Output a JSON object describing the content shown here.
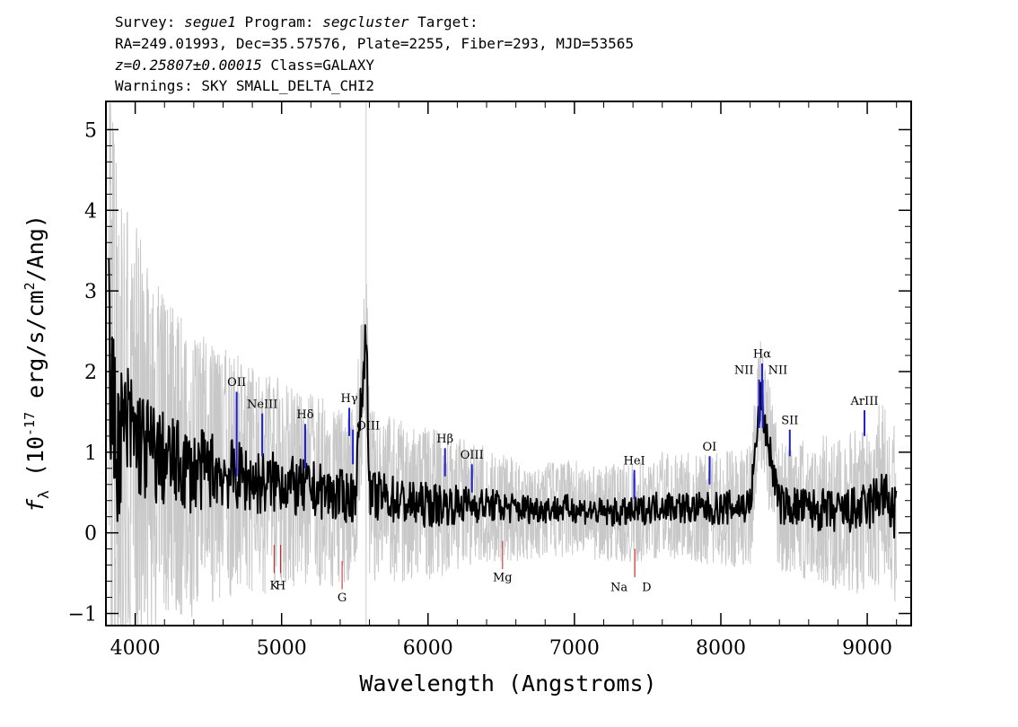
{
  "header": {
    "line1_parts": [
      "Survey: ",
      "segue1",
      " Program: ",
      "segcluster",
      " Target:"
    ],
    "line2": "RA=249.01993, Dec=35.57576, Plate=2255, Fiber=293, MJD=53565",
    "line3_redshift": "z=0.25807±0.00015",
    "line3_class": " Class=GALAXY",
    "line4": "Warnings: SKY SMALL_DELTA_CHI2"
  },
  "chart_data": {
    "type": "line",
    "xlabel": "Wavelength (Angstroms)",
    "ylabel": "fλ (10⁻¹⁷ erg/s/cm²/Ang)",
    "xlim": [
      3800,
      9300
    ],
    "ylim": [
      -1.15,
      5.35
    ],
    "x_ticks": [
      4000,
      5000,
      6000,
      7000,
      8000,
      9000
    ],
    "y_ticks": [
      -1,
      0,
      1,
      2,
      3,
      4,
      5
    ],
    "series": [
      {
        "role": "flux",
        "color": "#000000",
        "x": [
          3820,
          3840,
          3860,
          3880,
          3900,
          3950,
          4000,
          4100,
          4200,
          4300,
          4400,
          4500,
          4600,
          4700,
          4800,
          4900,
          5000,
          5100,
          5200,
          5300,
          5400,
          5500,
          5580,
          5600,
          5700,
          5800,
          5900,
          6000,
          6200,
          6400,
          6600,
          6800,
          7000,
          7200,
          7400,
          7600,
          7800,
          8000,
          8200,
          8270,
          8400,
          8600,
          8800,
          9000,
          9100,
          9200
        ],
        "y": [
          2.4,
          1.5,
          1.3,
          1.1,
          1.2,
          1.3,
          1.2,
          1.0,
          0.9,
          0.85,
          0.75,
          0.8,
          0.75,
          0.7,
          0.65,
          0.6,
          0.65,
          0.55,
          0.55,
          0.5,
          0.45,
          0.45,
          2.55,
          0.45,
          0.45,
          0.4,
          0.35,
          0.35,
          0.35,
          0.35,
          0.3,
          0.3,
          0.3,
          0.25,
          0.25,
          0.35,
          0.3,
          0.3,
          0.35,
          1.65,
          0.35,
          0.3,
          0.25,
          0.3,
          0.5,
          0.2
        ]
      },
      {
        "role": "error",
        "color": "#c8c8c8",
        "x": [
          3820,
          3900,
          4000,
          4200,
          4400,
          4600,
          4800,
          5000,
          5200,
          5400,
          5600,
          5800,
          6000,
          6400,
          6800,
          7200,
          7600,
          8000,
          8400,
          8800,
          9000,
          9200
        ],
        "y": [
          3.5,
          2.6,
          2.2,
          1.7,
          1.5,
          1.3,
          1.2,
          1.1,
          1.0,
          0.95,
          0.9,
          0.85,
          0.8,
          0.6,
          0.5,
          0.5,
          0.55,
          0.6,
          0.7,
          0.8,
          0.9,
          1.0
        ]
      }
    ],
    "sky_line_x": 5577,
    "emission_lines": [
      {
        "label": "OII",
        "x": 4693,
        "y0": 0.7,
        "y1": 1.75,
        "label_y": 1.82,
        "color": "#1f1fd1"
      },
      {
        "label": "NeIII",
        "x": 4868,
        "y0": 0.95,
        "y1": 1.48,
        "label_y": 1.55,
        "color": "#1f1fd1"
      },
      {
        "label": "Hδ",
        "x": 5161,
        "y0": 0.8,
        "y1": 1.35,
        "label_y": 1.42,
        "color": "#1f1fd1"
      },
      {
        "label": "Hγ",
        "x": 5462,
        "y0": 1.2,
        "y1": 1.55,
        "label_y": 1.62,
        "color": "#1f1fd1"
      },
      {
        "label": "OIII",
        "x": 5487,
        "y0": 0.85,
        "y1": 1.28,
        "label_y": 1.28,
        "color": "#1f1fd1"
      },
      {
        "label": "Hβ",
        "x": 6116,
        "y0": 0.7,
        "y1": 1.05,
        "label_y": 1.12,
        "color": "#1f1fd1"
      },
      {
        "label": "OIII",
        "x": 6300,
        "y0": 0.5,
        "y1": 0.85,
        "label_y": 0.92,
        "color": "#1f1fd1"
      },
      {
        "label": "HeI",
        "x": 7409,
        "y0": 0.42,
        "y1": 0.78,
        "label_y": 0.85,
        "color": "#1f1fd1"
      },
      {
        "label": "OI",
        "x": 7923,
        "y0": 0.6,
        "y1": 0.95,
        "label_y": 1.02,
        "color": "#1f1fd1"
      },
      {
        "label": "NII",
        "x": 8261,
        "y0": 1.3,
        "y1": 1.9,
        "label_y": 1.97,
        "color": "#1f1fd1"
      },
      {
        "label": "Hα",
        "x": 8282,
        "y0": 1.55,
        "y1": 2.1,
        "label_y": 2.17,
        "color": "#1f1fd1"
      },
      {
        "label": "NII",
        "x": 8286,
        "y0": 1.3,
        "y1": 1.9,
        "label_y": 1.97,
        "color": "#1f1fd1"
      },
      {
        "label": "SII",
        "x": 8471,
        "y0": 0.95,
        "y1": 1.28,
        "label_y": 1.35,
        "color": "#1f1fd1"
      },
      {
        "label": "ArIII",
        "x": 8981,
        "y0": 1.2,
        "y1": 1.52,
        "label_y": 1.59,
        "color": "#1f1fd1"
      }
    ],
    "absorption_lines": [
      {
        "label": "K",
        "x": 4949,
        "y0": -0.15,
        "y1": -0.5,
        "label_y": -0.7,
        "color": "#c81e1e"
      },
      {
        "label": "H",
        "x": 4993,
        "y0": -0.15,
        "y1": -0.5,
        "label_y": -0.7,
        "color": "#c81e1e"
      },
      {
        "label": "G",
        "x": 5413,
        "y0": -0.35,
        "y1": -0.7,
        "label_y": -0.85,
        "color": "#c81e1e"
      },
      {
        "label": "Mg",
        "x": 6509,
        "y0": -0.1,
        "y1": -0.45,
        "label_y": -0.6,
        "color": "#c81e1e"
      },
      {
        "label": "Na",
        "x": 7412,
        "y0": -0.2,
        "y1": -0.55,
        "label_y": -0.72,
        "color": "#c81e1e"
      },
      {
        "label": "D",
        "x": 7412,
        "y0": -0.2,
        "y1": -0.55,
        "label_y": -0.72,
        "color": "#c81e1e"
      }
    ]
  }
}
